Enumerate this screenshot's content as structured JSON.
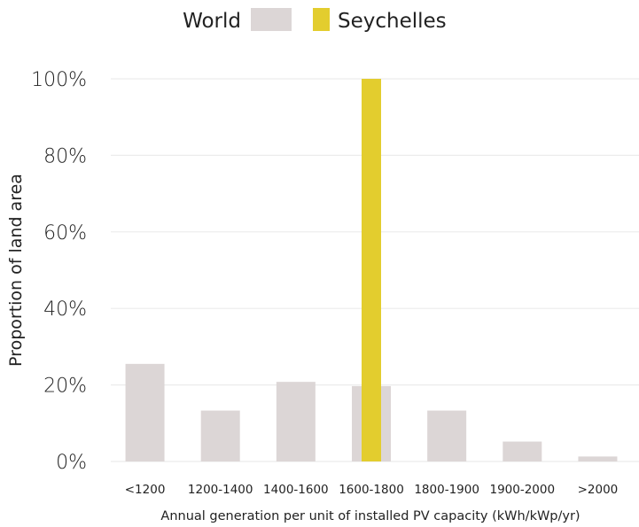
{
  "chart_data": {
    "type": "bar",
    "categories": [
      "<1200",
      "1200-1400",
      "1400-1600",
      "1600-1800",
      "1800-1900",
      "1900-2000",
      ">2000"
    ],
    "series": [
      {
        "name": "World",
        "color": "#dcd6d6",
        "values": [
          25.5,
          13.3,
          20.8,
          19.7,
          13.3,
          5.2,
          1.3
        ]
      },
      {
        "name": "Seychelles",
        "color": "#e3cd2e",
        "values": [
          0,
          0,
          0,
          100,
          0,
          0,
          0
        ]
      }
    ],
    "xlabel": "Annual generation per unit of installed PV capacity (kWh/kWp/yr)",
    "ylabel": "Proportion of land area",
    "ylim": [
      0,
      100
    ],
    "yticks": [
      "0%",
      "20%",
      "40%",
      "60%",
      "80%",
      "100%"
    ],
    "grid": true,
    "legend_position": "top"
  }
}
